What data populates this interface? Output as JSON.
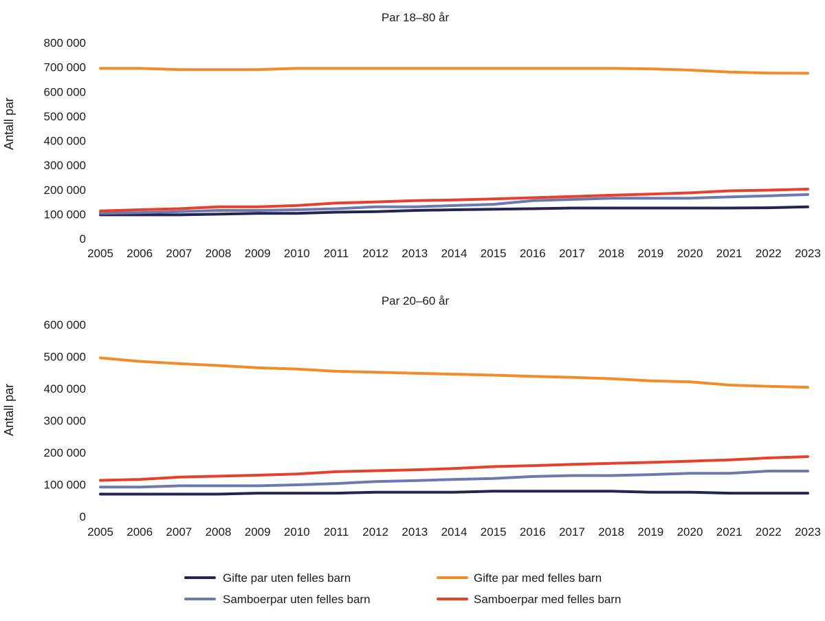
{
  "chart_data": [
    {
      "type": "line",
      "title": "Par 18–80 år",
      "xlabel": "",
      "ylabel": "Antall par",
      "ylim": [
        0,
        800000
      ],
      "yticks": [
        0,
        100000,
        200000,
        300000,
        400000,
        500000,
        600000,
        700000,
        800000
      ],
      "ytick_labels": [
        "0",
        "100 000",
        "200 000",
        "300 000",
        "400 000",
        "500 000",
        "600 000",
        "700 000",
        "800 000"
      ],
      "categories": [
        "2005",
        "2006",
        "2007",
        "2008",
        "2009",
        "2010",
        "2011",
        "2012",
        "2013",
        "2014",
        "2015",
        "2016",
        "2017",
        "2018",
        "2019",
        "2020",
        "2021",
        "2022",
        "2023"
      ],
      "grid": false,
      "series": [
        {
          "name": "Gifte par uten felles barn",
          "color": "#232451",
          "values": [
            97000,
            97000,
            97000,
            100000,
            103000,
            103000,
            108000,
            110000,
            115000,
            118000,
            120000,
            122000,
            125000,
            125000,
            125000,
            125000,
            125000,
            126000,
            130000
          ]
        },
        {
          "name": "Gifte par med felles barn",
          "color": "#F28C28",
          "values": [
            695000,
            695000,
            690000,
            690000,
            690000,
            695000,
            695000,
            695000,
            695000,
            695000,
            695000,
            695000,
            695000,
            695000,
            693000,
            688000,
            680000,
            676000,
            675000
          ]
        },
        {
          "name": "Samboerpar uten felles barn",
          "color": "#6B79AE",
          "values": [
            103000,
            106000,
            110000,
            115000,
            115000,
            118000,
            122000,
            130000,
            130000,
            135000,
            140000,
            155000,
            160000,
            165000,
            165000,
            165000,
            170000,
            175000,
            180000
          ]
        },
        {
          "name": "Samboerpar med felles barn",
          "color": "#E8402F",
          "values": [
            113000,
            118000,
            122000,
            130000,
            130000,
            135000,
            145000,
            150000,
            155000,
            158000,
            162000,
            167000,
            172000,
            177000,
            182000,
            187000,
            195000,
            198000,
            202000
          ]
        }
      ]
    },
    {
      "type": "line",
      "title": "Par 20–60 år",
      "xlabel": "",
      "ylabel": "Antall par",
      "ylim": [
        0,
        600000
      ],
      "yticks": [
        0,
        100000,
        200000,
        300000,
        400000,
        500000,
        600000
      ],
      "ytick_labels": [
        "0",
        "100 000",
        "200 000",
        "300 000",
        "400 000",
        "500 000",
        "600 000"
      ],
      "categories": [
        "2005",
        "2006",
        "2007",
        "2008",
        "2009",
        "2010",
        "2011",
        "2012",
        "2013",
        "2014",
        "2015",
        "2016",
        "2017",
        "2018",
        "2019",
        "2020",
        "2021",
        "2022",
        "2023"
      ],
      "grid": false,
      "series": [
        {
          "name": "Gifte par uten felles barn",
          "color": "#232451",
          "values": [
            70000,
            70000,
            70000,
            70000,
            73000,
            73000,
            73000,
            76000,
            76000,
            76000,
            79000,
            79000,
            79000,
            79000,
            76000,
            76000,
            73000,
            73000,
            73000
          ]
        },
        {
          "name": "Gifte par med felles barn",
          "color": "#F28C28",
          "values": [
            496000,
            485000,
            478000,
            472000,
            465000,
            461000,
            454000,
            451000,
            448000,
            445000,
            442000,
            438000,
            435000,
            431000,
            424000,
            421000,
            411000,
            407000,
            404000
          ]
        },
        {
          "name": "Samboerpar uten felles barn",
          "color": "#6B79AE",
          "values": [
            92000,
            92000,
            96000,
            96000,
            96000,
            99000,
            103000,
            109000,
            112000,
            116000,
            119000,
            125000,
            128000,
            128000,
            131000,
            135000,
            135000,
            142000,
            142000
          ]
        },
        {
          "name": "Samboerpar med felles barn",
          "color": "#E8402F",
          "values": [
            113000,
            116000,
            123000,
            126000,
            129000,
            133000,
            140000,
            143000,
            146000,
            150000,
            156000,
            159000,
            163000,
            166000,
            169000,
            173000,
            177000,
            183000,
            187000
          ]
        }
      ]
    }
  ],
  "legend": {
    "placement": "bottom",
    "items": [
      {
        "label": "Gifte par uten felles barn",
        "color": "#232451"
      },
      {
        "label": "Gifte par med felles barn",
        "color": "#F28C28"
      },
      {
        "label": "Samboerpar uten felles barn",
        "color": "#6B79AE"
      },
      {
        "label": "Samboerpar med felles barn",
        "color": "#E8402F"
      }
    ]
  }
}
